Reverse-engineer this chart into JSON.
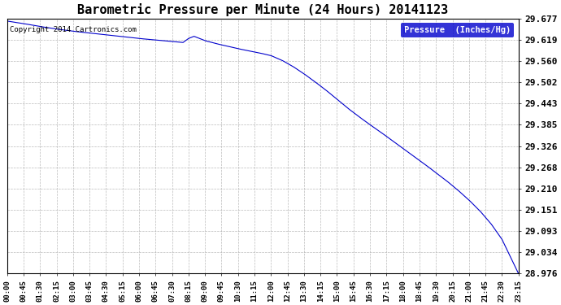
{
  "title": "Barometric Pressure per Minute (24 Hours) 20141123",
  "copyright": "Copyright 2014 Cartronics.com",
  "legend_label": "Pressure  (Inches/Hg)",
  "legend_bg": "#0000cc",
  "legend_text_color": "#ffffff",
  "line_color": "#0000cc",
  "bg_color": "#ffffff",
  "plot_bg_color": "#ffffff",
  "grid_color": "#aaaaaa",
  "title_fontsize": 11,
  "ylabel_fontsize": 8,
  "xlabel_fontsize": 6.5,
  "yticks": [
    29.677,
    29.619,
    29.56,
    29.502,
    29.443,
    29.385,
    29.326,
    29.268,
    29.21,
    29.151,
    29.093,
    29.034,
    28.976
  ],
  "xtick_labels": [
    "00:00",
    "00:45",
    "01:30",
    "02:15",
    "03:00",
    "03:45",
    "04:30",
    "05:15",
    "06:00",
    "06:45",
    "07:30",
    "08:15",
    "09:00",
    "09:45",
    "10:30",
    "11:15",
    "12:00",
    "12:45",
    "13:30",
    "14:15",
    "15:00",
    "15:45",
    "16:30",
    "17:15",
    "18:00",
    "18:45",
    "19:30",
    "20:15",
    "21:00",
    "21:45",
    "22:30",
    "23:15"
  ],
  "key_t": [
    0,
    45,
    90,
    135,
    180,
    225,
    270,
    315,
    360,
    405,
    450,
    480,
    495,
    510,
    525,
    540,
    570,
    600,
    630,
    660,
    690,
    720,
    750,
    780,
    810,
    840,
    870,
    900,
    930,
    960,
    990,
    1020,
    1050,
    1080,
    1110,
    1140,
    1170,
    1200,
    1230,
    1260,
    1290,
    1320,
    1350,
    1395
  ],
  "key_v": [
    29.67,
    29.663,
    29.655,
    29.648,
    29.642,
    29.637,
    29.632,
    29.627,
    29.622,
    29.618,
    29.614,
    29.611,
    29.622,
    29.628,
    29.622,
    29.616,
    29.608,
    29.601,
    29.594,
    29.588,
    29.582,
    29.575,
    29.562,
    29.545,
    29.525,
    29.503,
    29.48,
    29.455,
    29.43,
    29.407,
    29.385,
    29.364,
    29.342,
    29.32,
    29.298,
    29.276,
    29.253,
    29.23,
    29.205,
    29.178,
    29.148,
    29.113,
    29.07,
    28.976
  ]
}
